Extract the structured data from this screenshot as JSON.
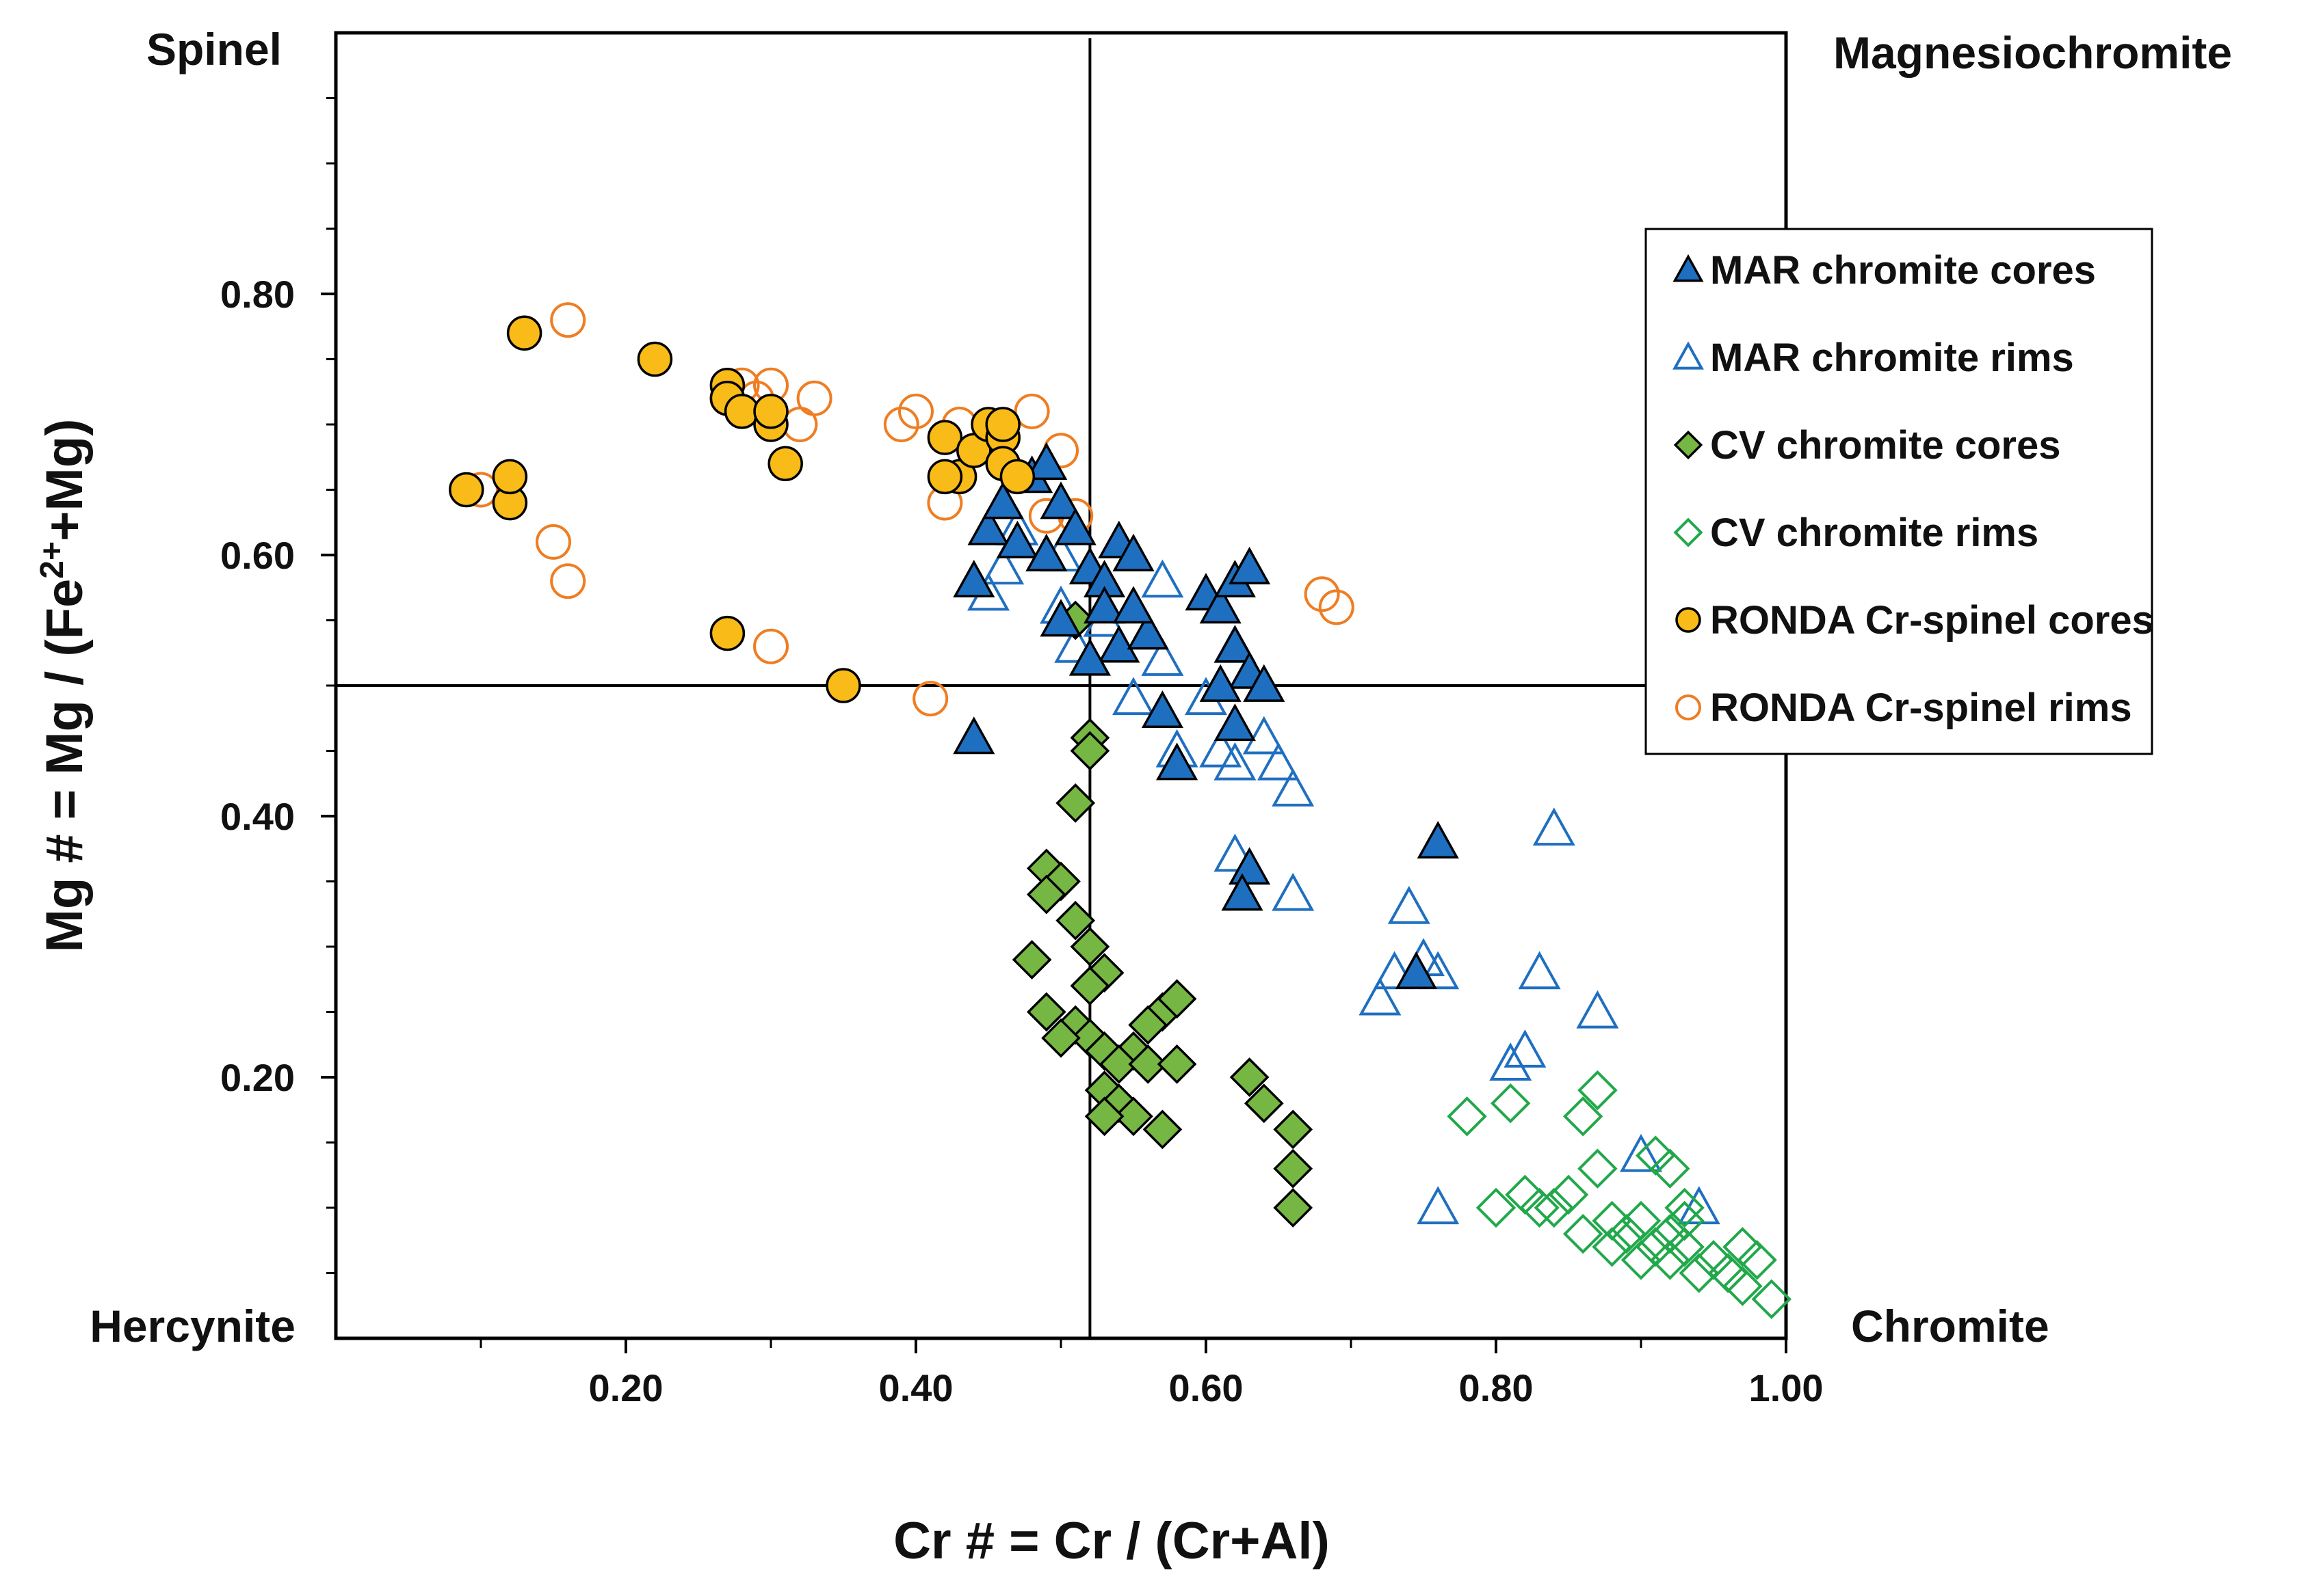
{
  "chart_data": {
    "type": "scatter",
    "xlabel": "Cr # = Cr / (Cr+Al)",
    "ylabel_parts": [
      "Mg # = Mg / (Fe",
      "2+",
      "+Mg)"
    ],
    "xlim": [
      0,
      1.0
    ],
    "ylim": [
      0,
      1.0
    ],
    "x_ticks": [
      0.2,
      0.4,
      0.6,
      0.8,
      1.0
    ],
    "x_tick_labels": [
      "0.20",
      "0.40",
      "0.60",
      "0.80",
      "1.00"
    ],
    "y_ticks": [
      0.2,
      0.4,
      0.6,
      0.8
    ],
    "y_tick_labels": [
      "0.20",
      "0.40",
      "0.60",
      "0.80"
    ],
    "divider_x": 0.52,
    "divider_y": 0.5,
    "corner_labels": {
      "top_left": "Spinel",
      "top_right": "Magnesiochromite",
      "bottom_left": "Hercynite",
      "bottom_right": "Chromite"
    },
    "legend_position": "right",
    "series": [
      {
        "name": "MAR chromite cores",
        "marker": "triangle",
        "fill": "#1f6fc0",
        "stroke": "#000000",
        "points": [
          [
            0.44,
            0.58
          ],
          [
            0.45,
            0.62
          ],
          [
            0.46,
            0.64
          ],
          [
            0.47,
            0.61
          ],
          [
            0.48,
            0.66
          ],
          [
            0.49,
            0.67
          ],
          [
            0.5,
            0.64
          ],
          [
            0.51,
            0.62
          ],
          [
            0.49,
            0.6
          ],
          [
            0.52,
            0.59
          ],
          [
            0.53,
            0.58
          ],
          [
            0.54,
            0.61
          ],
          [
            0.55,
            0.6
          ],
          [
            0.53,
            0.56
          ],
          [
            0.54,
            0.53
          ],
          [
            0.56,
            0.54
          ],
          [
            0.57,
            0.48
          ],
          [
            0.58,
            0.44
          ],
          [
            0.6,
            0.57
          ],
          [
            0.61,
            0.56
          ],
          [
            0.62,
            0.58
          ],
          [
            0.63,
            0.59
          ],
          [
            0.62,
            0.53
          ],
          [
            0.63,
            0.51
          ],
          [
            0.64,
            0.5
          ],
          [
            0.61,
            0.5
          ],
          [
            0.62,
            0.47
          ],
          [
            0.63,
            0.36
          ],
          [
            0.625,
            0.34
          ],
          [
            0.44,
            0.46
          ],
          [
            0.745,
            0.28
          ],
          [
            0.76,
            0.38
          ],
          [
            0.52,
            0.52
          ],
          [
            0.5,
            0.55
          ],
          [
            0.55,
            0.56
          ]
        ]
      },
      {
        "name": "MAR chromite rims",
        "marker": "triangle-open",
        "fill": "none",
        "stroke": "#1f6fc0",
        "points": [
          [
            0.45,
            0.57
          ],
          [
            0.46,
            0.59
          ],
          [
            0.47,
            0.62
          ],
          [
            0.5,
            0.56
          ],
          [
            0.51,
            0.53
          ],
          [
            0.53,
            0.55
          ],
          [
            0.55,
            0.49
          ],
          [
            0.57,
            0.52
          ],
          [
            0.57,
            0.58
          ],
          [
            0.58,
            0.45
          ],
          [
            0.6,
            0.49
          ],
          [
            0.61,
            0.45
          ],
          [
            0.62,
            0.44
          ],
          [
            0.64,
            0.46
          ],
          [
            0.65,
            0.44
          ],
          [
            0.66,
            0.42
          ],
          [
            0.62,
            0.37
          ],
          [
            0.66,
            0.34
          ],
          [
            0.72,
            0.26
          ],
          [
            0.73,
            0.28
          ],
          [
            0.74,
            0.33
          ],
          [
            0.75,
            0.29
          ],
          [
            0.76,
            0.28
          ],
          [
            0.76,
            0.1
          ],
          [
            0.81,
            0.21
          ],
          [
            0.82,
            0.22
          ],
          [
            0.83,
            0.28
          ],
          [
            0.84,
            0.39
          ],
          [
            0.87,
            0.25
          ],
          [
            0.9,
            0.14
          ],
          [
            0.94,
            0.1
          ],
          [
            0.62,
            0.53
          ],
          [
            0.5,
            0.6
          ]
        ]
      },
      {
        "name": "CV chromite cores",
        "marker": "diamond",
        "fill": "#76b743",
        "stroke": "#000000",
        "points": [
          [
            0.51,
            0.55
          ],
          [
            0.52,
            0.46
          ],
          [
            0.52,
            0.45
          ],
          [
            0.51,
            0.41
          ],
          [
            0.49,
            0.36
          ],
          [
            0.5,
            0.35
          ],
          [
            0.49,
            0.34
          ],
          [
            0.51,
            0.32
          ],
          [
            0.52,
            0.3
          ],
          [
            0.48,
            0.29
          ],
          [
            0.53,
            0.28
          ],
          [
            0.52,
            0.27
          ],
          [
            0.49,
            0.25
          ],
          [
            0.51,
            0.24
          ],
          [
            0.52,
            0.23
          ],
          [
            0.5,
            0.23
          ],
          [
            0.53,
            0.22
          ],
          [
            0.55,
            0.22
          ],
          [
            0.54,
            0.21
          ],
          [
            0.56,
            0.21
          ],
          [
            0.57,
            0.25
          ],
          [
            0.58,
            0.26
          ],
          [
            0.58,
            0.21
          ],
          [
            0.53,
            0.19
          ],
          [
            0.54,
            0.18
          ],
          [
            0.55,
            0.17
          ],
          [
            0.53,
            0.17
          ],
          [
            0.57,
            0.16
          ],
          [
            0.63,
            0.2
          ],
          [
            0.64,
            0.18
          ],
          [
            0.66,
            0.16
          ],
          [
            0.66,
            0.13
          ],
          [
            0.66,
            0.1
          ],
          [
            0.56,
            0.24
          ]
        ]
      },
      {
        "name": "CV chromite rims",
        "marker": "diamond-open",
        "fill": "none",
        "stroke": "#21a84a",
        "points": [
          [
            0.78,
            0.17
          ],
          [
            0.81,
            0.18
          ],
          [
            0.8,
            0.1
          ],
          [
            0.82,
            0.11
          ],
          [
            0.83,
            0.1
          ],
          [
            0.84,
            0.1
          ],
          [
            0.85,
            0.11
          ],
          [
            0.86,
            0.08
          ],
          [
            0.86,
            0.17
          ],
          [
            0.87,
            0.13
          ],
          [
            0.87,
            0.19
          ],
          [
            0.88,
            0.09
          ],
          [
            0.88,
            0.07
          ],
          [
            0.89,
            0.08
          ],
          [
            0.9,
            0.09
          ],
          [
            0.91,
            0.14
          ],
          [
            0.92,
            0.13
          ],
          [
            0.91,
            0.07
          ],
          [
            0.92,
            0.06
          ],
          [
            0.93,
            0.07
          ],
          [
            0.93,
            0.1
          ],
          [
            0.94,
            0.05
          ],
          [
            0.95,
            0.06
          ],
          [
            0.96,
            0.05
          ],
          [
            0.97,
            0.07
          ],
          [
            0.97,
            0.04
          ],
          [
            0.98,
            0.06
          ],
          [
            0.99,
            0.03
          ],
          [
            0.93,
            0.09
          ],
          [
            0.9,
            0.06
          ],
          [
            0.92,
            0.08
          ],
          [
            0.96,
            0.05
          ]
        ]
      },
      {
        "name": "RONDA Cr-spinel cores",
        "marker": "circle",
        "fill": "#f9bb17",
        "stroke": "#000000",
        "points": [
          [
            0.09,
            0.65
          ],
          [
            0.12,
            0.64
          ],
          [
            0.12,
            0.66
          ],
          [
            0.13,
            0.77
          ],
          [
            0.22,
            0.75
          ],
          [
            0.27,
            0.73
          ],
          [
            0.27,
            0.72
          ],
          [
            0.28,
            0.71
          ],
          [
            0.3,
            0.7
          ],
          [
            0.3,
            0.71
          ],
          [
            0.31,
            0.67
          ],
          [
            0.27,
            0.54
          ],
          [
            0.35,
            0.5
          ],
          [
            0.42,
            0.69
          ],
          [
            0.43,
            0.66
          ],
          [
            0.44,
            0.68
          ],
          [
            0.45,
            0.7
          ],
          [
            0.46,
            0.69
          ],
          [
            0.46,
            0.67
          ],
          [
            0.47,
            0.66
          ],
          [
            0.46,
            0.7
          ],
          [
            0.42,
            0.66
          ]
        ]
      },
      {
        "name": "RONDA Cr-spinel rims",
        "marker": "circle-open",
        "fill": "none",
        "stroke": "#ef7d22",
        "points": [
          [
            0.1,
            0.65
          ],
          [
            0.15,
            0.61
          ],
          [
            0.16,
            0.58
          ],
          [
            0.16,
            0.78
          ],
          [
            0.27,
            0.72
          ],
          [
            0.28,
            0.73
          ],
          [
            0.29,
            0.72
          ],
          [
            0.3,
            0.73
          ],
          [
            0.32,
            0.7
          ],
          [
            0.33,
            0.72
          ],
          [
            0.3,
            0.53
          ],
          [
            0.39,
            0.7
          ],
          [
            0.4,
            0.71
          ],
          [
            0.42,
            0.64
          ],
          [
            0.43,
            0.7
          ],
          [
            0.48,
            0.71
          ],
          [
            0.49,
            0.63
          ],
          [
            0.5,
            0.68
          ],
          [
            0.51,
            0.63
          ],
          [
            0.41,
            0.49
          ],
          [
            0.68,
            0.57
          ],
          [
            0.69,
            0.56
          ]
        ]
      }
    ]
  }
}
